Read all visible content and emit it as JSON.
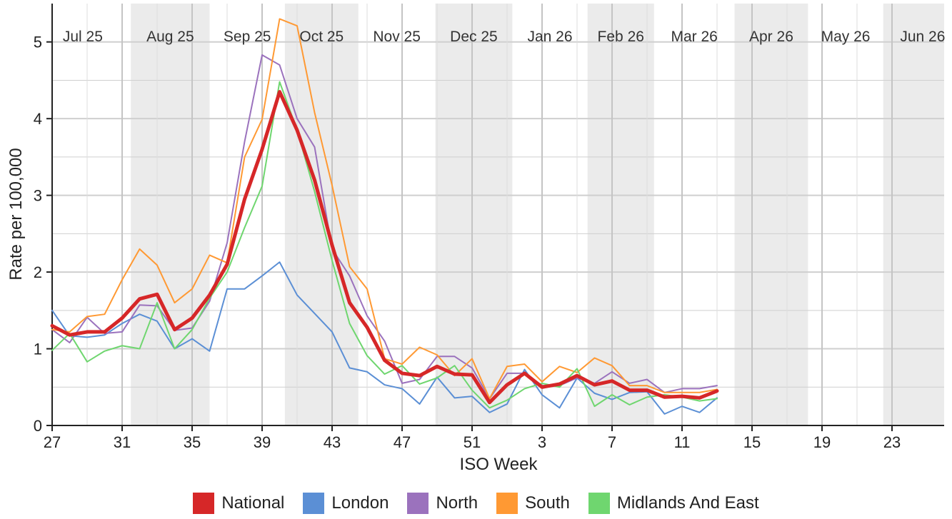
{
  "chart_data": {
    "type": "line",
    "title": "",
    "xlabel": "ISO Week",
    "ylabel": "Rate per 100,000",
    "ylim": [
      0,
      5.5
    ],
    "yticks": [
      "0",
      "1",
      "2",
      "3",
      "4",
      "5"
    ],
    "x_ticks": [
      "27",
      "31",
      "35",
      "39",
      "43",
      "47",
      "51",
      "3",
      "7",
      "11",
      "15",
      "19",
      "23"
    ],
    "months": [
      "Jul 25",
      "Aug 25",
      "Sep 25",
      "Oct 25",
      "Nov 25",
      "Dec 25",
      "Jan 26",
      "Feb 26",
      "Mar 26",
      "Apr 26",
      "May 26",
      "Jun 26"
    ],
    "x_weeks": [
      "27",
      "28",
      "29",
      "30",
      "31",
      "32",
      "33",
      "34",
      "35",
      "36",
      "37",
      "38",
      "39",
      "40",
      "41",
      "42",
      "43",
      "44",
      "45",
      "46",
      "47",
      "48",
      "49",
      "50",
      "51",
      "52",
      "1",
      "2",
      "3",
      "4",
      "5",
      "6",
      "7",
      "8",
      "9",
      "10",
      "11",
      "12",
      "13"
    ],
    "grid": true,
    "legend_position": "bottom",
    "series": [
      {
        "name": "National",
        "color": "#d62728",
        "width": 5,
        "values": [
          1.3,
          1.18,
          1.22,
          1.22,
          1.4,
          1.65,
          1.71,
          1.25,
          1.4,
          1.7,
          2.1,
          2.95,
          3.6,
          4.35,
          3.85,
          3.2,
          2.35,
          1.6,
          1.28,
          0.85,
          0.68,
          0.65,
          0.77,
          0.67,
          0.66,
          0.3,
          0.53,
          0.68,
          0.5,
          0.54,
          0.65,
          0.53,
          0.58,
          0.46,
          0.46,
          0.37,
          0.38,
          0.36,
          0.45
        ]
      },
      {
        "name": "London",
        "color": "#5b8fd5",
        "width": 2,
        "values": [
          1.5,
          1.17,
          1.15,
          1.18,
          1.33,
          1.45,
          1.36,
          1.0,
          1.13,
          0.97,
          1.78,
          1.78,
          1.95,
          2.13,
          1.7,
          1.46,
          1.22,
          0.75,
          0.7,
          0.53,
          0.48,
          0.28,
          0.63,
          0.36,
          0.38,
          0.17,
          0.28,
          0.73,
          0.4,
          0.23,
          0.62,
          0.42,
          0.34,
          0.43,
          0.44,
          0.15,
          0.25,
          0.17,
          0.36
        ]
      },
      {
        "name": "North",
        "color": "#9b72bd",
        "width": 2,
        "values": [
          1.25,
          1.08,
          1.41,
          1.2,
          1.22,
          1.57,
          1.56,
          1.24,
          1.27,
          1.62,
          2.38,
          3.7,
          4.83,
          4.7,
          4.0,
          3.63,
          2.3,
          1.95,
          1.43,
          1.1,
          0.55,
          0.6,
          0.9,
          0.9,
          0.75,
          0.35,
          0.68,
          0.68,
          0.52,
          0.52,
          0.62,
          0.55,
          0.7,
          0.55,
          0.6,
          0.43,
          0.48,
          0.48,
          0.52
        ]
      },
      {
        "name": "South",
        "color": "#ff9933",
        "width": 2,
        "values": [
          1.25,
          1.22,
          1.42,
          1.45,
          1.9,
          2.3,
          2.09,
          1.6,
          1.78,
          2.22,
          2.12,
          3.5,
          3.99,
          5.3,
          5.21,
          4.08,
          3.13,
          2.07,
          1.78,
          0.87,
          0.8,
          1.02,
          0.92,
          0.65,
          0.87,
          0.35,
          0.77,
          0.8,
          0.57,
          0.77,
          0.69,
          0.88,
          0.78,
          0.52,
          0.52,
          0.43,
          0.43,
          0.43,
          0.47
        ]
      },
      {
        "name": "Midlands And East",
        "color": "#6fd66f",
        "width": 2,
        "values": [
          0.98,
          1.2,
          0.83,
          0.97,
          1.04,
          1.0,
          1.6,
          1.0,
          1.25,
          1.66,
          2.0,
          2.58,
          3.12,
          4.48,
          3.85,
          3.05,
          2.15,
          1.33,
          0.91,
          0.67,
          0.78,
          0.54,
          0.62,
          0.78,
          0.46,
          0.23,
          0.33,
          0.48,
          0.55,
          0.5,
          0.74,
          0.25,
          0.4,
          0.27,
          0.37,
          0.4,
          0.37,
          0.32,
          0.35
        ]
      }
    ]
  }
}
